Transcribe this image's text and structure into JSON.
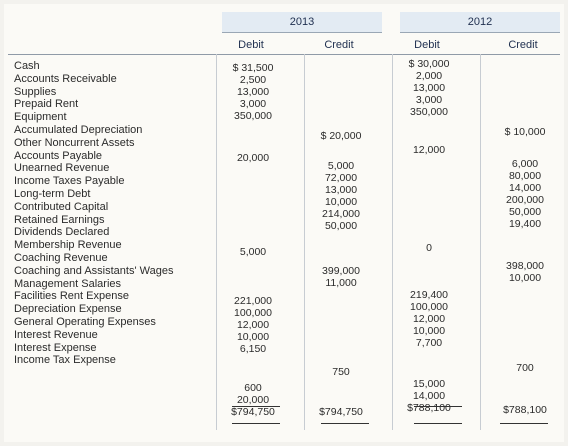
{
  "years": {
    "y2013": "2013",
    "y2012": "2012"
  },
  "headers": {
    "debit_2013": "Debit",
    "credit_2013": "Credit",
    "debit_2012": "Debit",
    "credit_2012": "Credit"
  },
  "accounts": [
    "Cash",
    "Accounts Receivable",
    "Supplies",
    "Prepaid Rent",
    "Equipment",
    "Accumulated Depreciation",
    "Other Noncurrent Assets",
    "Accounts Payable",
    "Unearned Revenue",
    "Income Taxes Payable",
    "Long-term Debt",
    "Contributed Capital",
    "Retained Earnings",
    "Dividends Declared",
    "Membership Revenue",
    "Coaching Revenue",
    "Coaching and Assistants' Wages",
    "Management Salaries",
    "Facilities Rent Expense",
    "Depreciation Expense",
    "General Operating Expenses",
    "Interest Revenue",
    "Interest Expense",
    "Income Tax Expense"
  ],
  "debit_2013": [
    {
      "v": "$ 31,500"
    },
    {
      "v": "2,500"
    },
    {
      "v": "13,000"
    },
    {
      "v": "3,000"
    },
    {
      "v": "350,000"
    },
    {
      "v": "20,000"
    },
    {
      "v": "5,000"
    },
    {
      "v": "221,000"
    },
    {
      "v": "100,000"
    },
    {
      "v": "12,000"
    },
    {
      "v": "10,000"
    },
    {
      "v": "6,150"
    },
    {
      "v": "600"
    },
    {
      "v": "20,000"
    },
    {
      "v": "$794,750"
    }
  ],
  "credit_2013": [
    {
      "v": "$ 20,000"
    },
    {
      "v": "5,000"
    },
    {
      "v": "72,000"
    },
    {
      "v": "13,000"
    },
    {
      "v": "10,000"
    },
    {
      "v": "214,000"
    },
    {
      "v": "50,000"
    },
    {
      "v": "399,000"
    },
    {
      "v": "11,000"
    },
    {
      "v": "750"
    },
    {
      "v": "$794,750"
    }
  ],
  "debit_2012": [
    {
      "v": "$ 30,000"
    },
    {
      "v": "2,000"
    },
    {
      "v": "13,000"
    },
    {
      "v": "3,000"
    },
    {
      "v": "350,000"
    },
    {
      "v": "12,000"
    },
    {
      "v": "0"
    },
    {
      "v": "219,400"
    },
    {
      "v": "100,000"
    },
    {
      "v": "12,000"
    },
    {
      "v": "10,000"
    },
    {
      "v": "7,700"
    },
    {
      "v": "15,000"
    },
    {
      "v": "14,000"
    },
    {
      "v": "$788,100"
    }
  ],
  "credit_2012": [
    {
      "v": "$ 10,000"
    },
    {
      "v": "6,000"
    },
    {
      "v": "80,000"
    },
    {
      "v": "14,000"
    },
    {
      "v": "200,000"
    },
    {
      "v": "50,000"
    },
    {
      "v": "19,400"
    },
    {
      "v": "398,000"
    },
    {
      "v": "10,000"
    },
    {
      "v": "700"
    },
    {
      "v": "$788,100"
    }
  ]
}
